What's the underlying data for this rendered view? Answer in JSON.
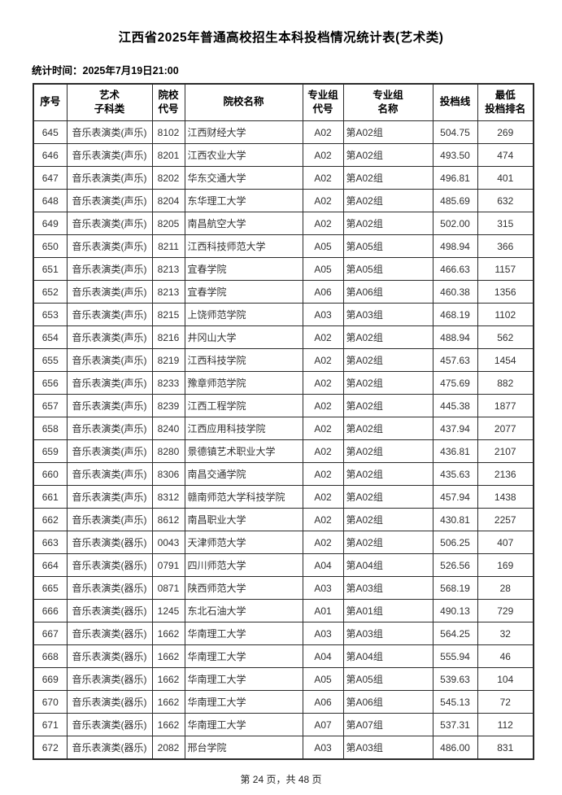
{
  "page": {
    "title": "江西省2025年普通高校招生本科投档情况统计表(艺术类)",
    "stat_time": {
      "label": "统计时间：",
      "value": "2025年7月19日21:00"
    },
    "footer": "第 24 页，共 48 页"
  },
  "table": {
    "headers": [
      {
        "line1": "序号",
        "line2": ""
      },
      {
        "line1": "艺术",
        "line2": "子科类"
      },
      {
        "line1": "院校",
        "line2": "代号"
      },
      {
        "line1": "院校名称",
        "line2": ""
      },
      {
        "line1": "专业组",
        "line2": "代号"
      },
      {
        "line1": "专业组",
        "line2": "名称"
      },
      {
        "line1": "投档线",
        "line2": ""
      },
      {
        "line1": "最低",
        "line2": "投档排名"
      }
    ],
    "rows": [
      [
        "645",
        "音乐表演类(声乐)",
        "8102",
        "江西财经大学",
        "A02",
        "第A02组",
        "504.75",
        "269"
      ],
      [
        "646",
        "音乐表演类(声乐)",
        "8201",
        "江西农业大学",
        "A02",
        "第A02组",
        "493.50",
        "474"
      ],
      [
        "647",
        "音乐表演类(声乐)",
        "8202",
        "华东交通大学",
        "A02",
        "第A02组",
        "496.81",
        "401"
      ],
      [
        "648",
        "音乐表演类(声乐)",
        "8204",
        "东华理工大学",
        "A02",
        "第A02组",
        "485.69",
        "632"
      ],
      [
        "649",
        "音乐表演类(声乐)",
        "8205",
        "南昌航空大学",
        "A02",
        "第A02组",
        "502.00",
        "315"
      ],
      [
        "650",
        "音乐表演类(声乐)",
        "8211",
        "江西科技师范大学",
        "A05",
        "第A05组",
        "498.94",
        "366"
      ],
      [
        "651",
        "音乐表演类(声乐)",
        "8213",
        "宜春学院",
        "A05",
        "第A05组",
        "466.63",
        "1157"
      ],
      [
        "652",
        "音乐表演类(声乐)",
        "8213",
        "宜春学院",
        "A06",
        "第A06组",
        "460.38",
        "1356"
      ],
      [
        "653",
        "音乐表演类(声乐)",
        "8215",
        "上饶师范学院",
        "A03",
        "第A03组",
        "468.19",
        "1102"
      ],
      [
        "654",
        "音乐表演类(声乐)",
        "8216",
        "井冈山大学",
        "A02",
        "第A02组",
        "488.94",
        "562"
      ],
      [
        "655",
        "音乐表演类(声乐)",
        "8219",
        "江西科技学院",
        "A02",
        "第A02组",
        "457.63",
        "1454"
      ],
      [
        "656",
        "音乐表演类(声乐)",
        "8233",
        "豫章师范学院",
        "A02",
        "第A02组",
        "475.69",
        "882"
      ],
      [
        "657",
        "音乐表演类(声乐)",
        "8239",
        "江西工程学院",
        "A02",
        "第A02组",
        "445.38",
        "1877"
      ],
      [
        "658",
        "音乐表演类(声乐)",
        "8240",
        "江西应用科技学院",
        "A02",
        "第A02组",
        "437.94",
        "2077"
      ],
      [
        "659",
        "音乐表演类(声乐)",
        "8280",
        "景德镇艺术职业大学",
        "A02",
        "第A02组",
        "436.81",
        "2107"
      ],
      [
        "660",
        "音乐表演类(声乐)",
        "8306",
        "南昌交通学院",
        "A02",
        "第A02组",
        "435.63",
        "2136"
      ],
      [
        "661",
        "音乐表演类(声乐)",
        "8312",
        "赣南师范大学科技学院",
        "A02",
        "第A02组",
        "457.94",
        "1438"
      ],
      [
        "662",
        "音乐表演类(声乐)",
        "8612",
        "南昌职业大学",
        "A02",
        "第A02组",
        "430.81",
        "2257"
      ],
      [
        "663",
        "音乐表演类(器乐)",
        "0043",
        "天津师范大学",
        "A02",
        "第A02组",
        "506.25",
        "407"
      ],
      [
        "664",
        "音乐表演类(器乐)",
        "0791",
        "四川师范大学",
        "A04",
        "第A04组",
        "526.56",
        "169"
      ],
      [
        "665",
        "音乐表演类(器乐)",
        "0871",
        "陕西师范大学",
        "A03",
        "第A03组",
        "568.19",
        "28"
      ],
      [
        "666",
        "音乐表演类(器乐)",
        "1245",
        "东北石油大学",
        "A01",
        "第A01组",
        "490.13",
        "729"
      ],
      [
        "667",
        "音乐表演类(器乐)",
        "1662",
        "华南理工大学",
        "A03",
        "第A03组",
        "564.25",
        "32"
      ],
      [
        "668",
        "音乐表演类(器乐)",
        "1662",
        "华南理工大学",
        "A04",
        "第A04组",
        "555.94",
        "46"
      ],
      [
        "669",
        "音乐表演类(器乐)",
        "1662",
        "华南理工大学",
        "A05",
        "第A05组",
        "539.63",
        "104"
      ],
      [
        "670",
        "音乐表演类(器乐)",
        "1662",
        "华南理工大学",
        "A06",
        "第A06组",
        "545.13",
        "72"
      ],
      [
        "671",
        "音乐表演类(器乐)",
        "1662",
        "华南理工大学",
        "A07",
        "第A07组",
        "537.31",
        "112"
      ],
      [
        "672",
        "音乐表演类(器乐)",
        "2082",
        "邢台学院",
        "A03",
        "第A03组",
        "486.00",
        "831"
      ]
    ]
  }
}
